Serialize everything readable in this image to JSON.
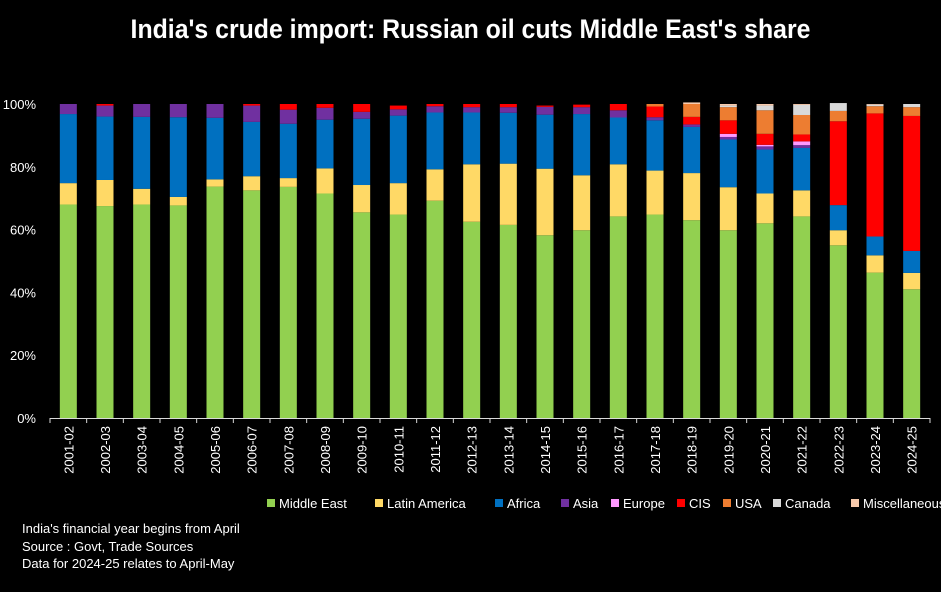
{
  "title": "India's crude import: Russian oil cuts Middle East's share",
  "notes": [
    "India's financial year begins from April",
    "Source : Govt, Trade Sources",
    "Data for 2024-25 relates to April-May"
  ],
  "chart_data": {
    "type": "bar",
    "stacked": true,
    "title": "India's crude import: Russian oil cuts Middle East's share",
    "ylim": [
      0,
      100
    ],
    "yticks": [
      "0%",
      "20%",
      "40%",
      "60%",
      "80%",
      "100%"
    ],
    "categories": [
      "2001-02",
      "2002-03",
      "2003-04",
      "2004-05",
      "2005-06",
      "2006-07",
      "2007-08",
      "2008-09",
      "2009-10",
      "2010-11",
      "2011-12",
      "2012-13",
      "2013-14",
      "2014-15",
      "2015-16",
      "2016-17",
      "2017-18",
      "2018-19",
      "2019-20",
      "2020-21",
      "2021-22",
      "2022-23",
      "2023-24",
      "2024-25"
    ],
    "legend_position": "bottom",
    "series": [
      {
        "name": "Middle East",
        "color": "#92D050",
        "values": [
          68,
          67.5,
          68,
          67.7,
          73.7,
          72.5,
          73.6,
          71.5,
          65.5,
          64.8,
          69.2,
          62.5,
          61.5,
          58.2,
          59.8,
          64.2,
          64.8,
          63,
          59.8,
          62,
          64.2,
          55,
          46.3,
          41
        ]
      },
      {
        "name": "Latin America",
        "color": "#FFD966",
        "values": [
          6.8,
          8.3,
          5,
          2.7,
          2.3,
          4.5,
          2.8,
          8,
          8.7,
          10,
          10,
          18.3,
          19.5,
          21.2,
          17.5,
          16.6,
          14,
          15,
          13.7,
          9.5,
          8.3,
          4.8,
          5.5,
          5.2
        ]
      },
      {
        "name": "Africa",
        "color": "#0070C0",
        "values": [
          22,
          20.2,
          22.9,
          25.4,
          19.6,
          17.3,
          17.3,
          15.5,
          21.1,
          21.5,
          18.1,
          16.5,
          16.2,
          17.2,
          19.5,
          14.9,
          16,
          14.7,
          15.2,
          14,
          13.5,
          8,
          6,
          7
        ]
      },
      {
        "name": "Asia",
        "color": "#7030A0",
        "values": [
          3.2,
          3.5,
          4.1,
          4.2,
          4.4,
          5.2,
          4.5,
          3.8,
          2.2,
          2,
          2,
          1.7,
          1.8,
          2.5,
          2.2,
          2.3,
          1,
          0.8,
          0.8,
          1,
          0.9,
          0,
          0,
          0
        ]
      },
      {
        "name": "Europe",
        "color": "#FF99FF",
        "values": [
          0,
          0,
          0,
          0,
          0,
          0,
          0,
          0,
          0,
          0,
          0,
          0,
          0,
          0,
          0,
          0,
          0,
          0,
          1,
          0.5,
          1.2,
          0,
          0,
          0
        ]
      },
      {
        "name": "CIS",
        "color": "#FF0000",
        "values": [
          0,
          0.5,
          0,
          0,
          0,
          0.5,
          1.8,
          1.2,
          2.5,
          1.2,
          0.7,
          1,
          1,
          0.4,
          0.8,
          2,
          3.4,
          2.4,
          4.3,
          3.5,
          2.2,
          26.7,
          39.2,
          43
        ]
      },
      {
        "name": "USA",
        "color": "#ED7D31",
        "values": [
          0,
          0,
          0,
          0,
          0,
          0,
          0,
          0,
          0,
          0,
          0,
          0,
          0,
          0,
          0,
          0,
          0.8,
          4.1,
          4.2,
          7.5,
          6.2,
          3.3,
          2.3,
          2.8
        ]
      },
      {
        "name": "Canada",
        "color": "#D9D9D9",
        "values": [
          0,
          0,
          0,
          0,
          0,
          0,
          0,
          0,
          0,
          0,
          0,
          0,
          0,
          0,
          0,
          0,
          0,
          0,
          0.5,
          1.5,
          3.2,
          2.5,
          0.5,
          1
        ]
      },
      {
        "name": "Miscellaneous",
        "color": "#F8CBAD",
        "values": [
          0,
          0,
          0,
          0,
          0,
          0,
          0,
          0,
          0,
          0,
          0,
          0,
          0,
          0,
          0,
          0,
          0,
          0.5,
          0.5,
          0.5,
          0.3,
          0,
          0.2,
          0
        ]
      }
    ],
    "colors": {
      "background": "#000000",
      "text": "#FFFFFF",
      "axis": "#D9D9D9"
    }
  }
}
